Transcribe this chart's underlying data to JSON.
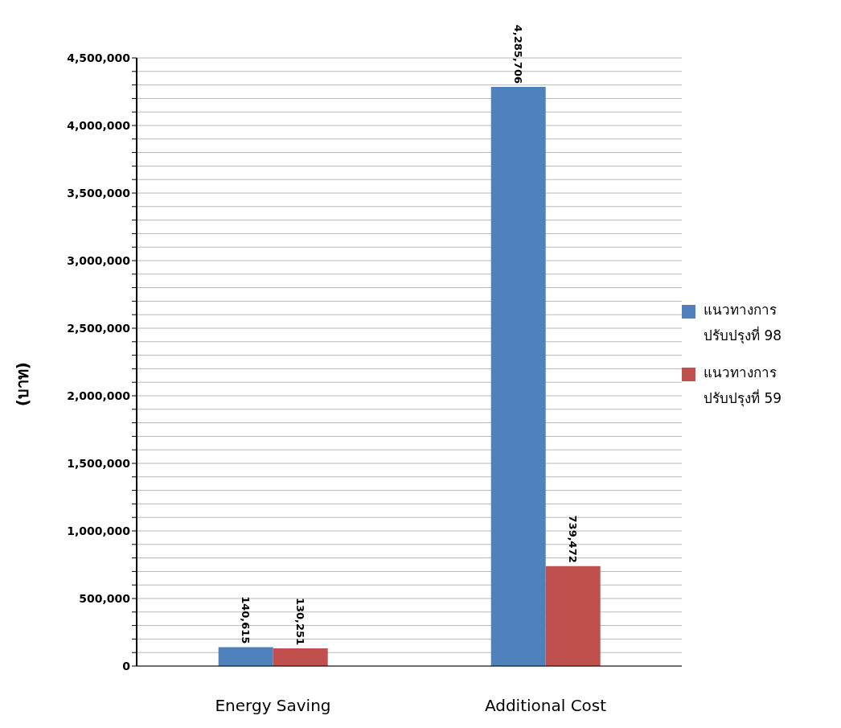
{
  "chart_data": {
    "type": "bar",
    "categories": [
      "Energy Saving",
      "Additional Cost"
    ],
    "series": [
      {
        "name": "แนวทางการ ปรับปรุงที่ 98",
        "color": "#4f81bd",
        "values": [
          140615,
          4285706
        ],
        "value_labels": [
          "140,615",
          "4,285,706"
        ]
      },
      {
        "name": "แนวทางการ ปรับปรุงที่ 59",
        "color": "#c0504d",
        "values": [
          130251,
          739472
        ],
        "value_labels": [
          "130,251",
          "739,472"
        ]
      }
    ],
    "ylabel": "(บาท)",
    "ylim": [
      0,
      4500000
    ],
    "yticks": [
      0,
      {
        "value": 100000,
        "label": null
      },
      {
        "value": 200000,
        "label": null
      },
      {
        "value": 300000,
        "label": null
      },
      {
        "value": 400000,
        "label": null
      },
      {
        "value": 500000,
        "label": "500,000"
      },
      {
        "value": 600000,
        "label": null
      },
      {
        "value": 700000,
        "label": null
      },
      {
        "value": 800000,
        "label": null
      },
      {
        "value": 900000,
        "label": null
      },
      {
        "value": 1000000,
        "label": "1,000,000"
      },
      {
        "value": 1100000,
        "label": null
      },
      {
        "value": 1200000,
        "label": null
      },
      {
        "value": 1300000,
        "label": null
      },
      {
        "value": 1400000,
        "label": null
      },
      {
        "value": 1500000,
        "label": "1,500,000"
      },
      {
        "value": 1600000,
        "label": null
      },
      {
        "value": 1700000,
        "label": null
      },
      {
        "value": 1800000,
        "label": null
      },
      {
        "value": 1900000,
        "label": null
      },
      {
        "value": 2000000,
        "label": "2,000,000"
      },
      {
        "value": 2100000,
        "label": null
      },
      {
        "value": 2200000,
        "label": null
      },
      {
        "value": 2300000,
        "label": null
      },
      {
        "value": 2400000,
        "label": null
      },
      {
        "value": 2500000,
        "label": "2,500,000"
      },
      {
        "value": 2600000,
        "label": null
      },
      {
        "value": 2700000,
        "label": null
      },
      {
        "value": 2800000,
        "label": null
      },
      {
        "value": 2900000,
        "label": null
      },
      {
        "value": 3000000,
        "label": "3,000,000"
      },
      {
        "value": 3100000,
        "label": null
      },
      {
        "value": 3200000,
        "label": null
      },
      {
        "value": 3300000,
        "label": null
      },
      {
        "value": 3400000,
        "label": null
      },
      {
        "value": 3500000,
        "label": "3,500,000"
      },
      {
        "value": 3600000,
        "label": null
      },
      {
        "value": 3700000,
        "label": null
      },
      {
        "value": 3800000,
        "label": null
      },
      {
        "value": 3900000,
        "label": null
      },
      {
        "value": 4000000,
        "label": "4,000,000"
      },
      {
        "value": 4100000,
        "label": null
      },
      {
        "value": 4200000,
        "label": null
      },
      {
        "value": 4300000,
        "label": null
      },
      {
        "value": 4400000,
        "label": null
      },
      {
        "value": 4500000,
        "label": "4,500,000"
      }
    ],
    "grid": "y",
    "legend": "right"
  }
}
